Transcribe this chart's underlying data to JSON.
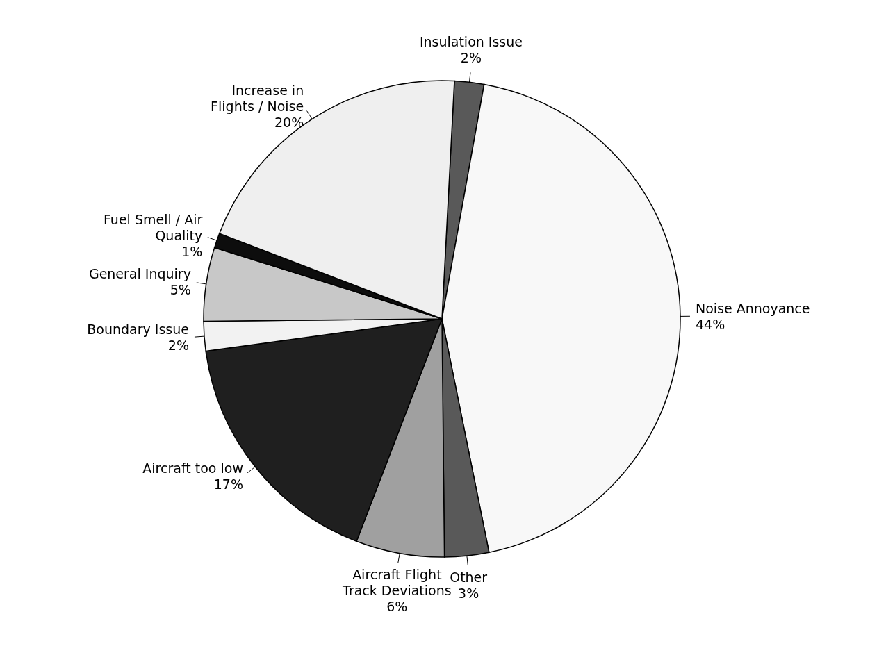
{
  "chart_data": {
    "type": "pie",
    "categories": [
      "Insulation Issue",
      "Noise Annoyance",
      "Other",
      "Aircraft Flight Track Deviations",
      "Aircraft too low",
      "Boundary Issue",
      "General Inquiry",
      "Fuel Smell / Air Quality",
      "Increase in Flights / Noise"
    ],
    "values": [
      2,
      44,
      3,
      6,
      17,
      2,
      5,
      1,
      20
    ],
    "colors": [
      "#595959",
      "#f8f8f8",
      "#595959",
      "#a0a0a0",
      "#1f1f1f",
      "#f2f2f2",
      "#c8c8c8",
      "#0d0d0d",
      "#efefef"
    ],
    "value_labels": [
      "2%",
      "44%",
      "3%",
      "6%",
      "17%",
      "2%",
      "5%",
      "1%",
      "20%"
    ],
    "legend": false
  }
}
